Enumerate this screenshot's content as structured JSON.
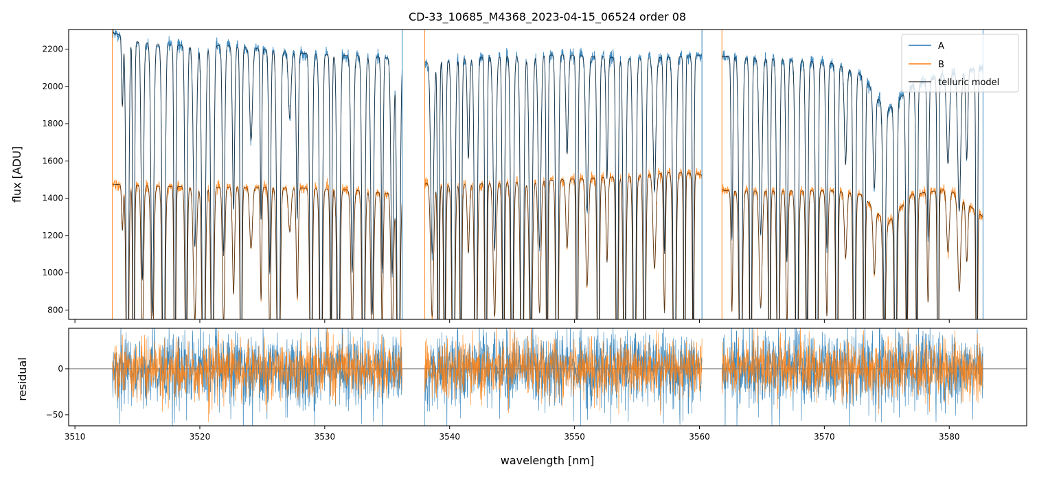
{
  "chart_data": {
    "type": "line",
    "title": "CD-33_10685_M4368_2023-04-15_06524  order 08",
    "xlabel": "wavelength [nm]",
    "colors": {
      "A": "#1f77b4",
      "B": "#ff7f0e",
      "model": "#000000"
    },
    "top_panel": {
      "ylabel": "flux [ADU]",
      "xlim": [
        3509.5,
        3586.2
      ],
      "ylim": [
        750,
        2305
      ],
      "yticks": [
        800,
        1000,
        1200,
        1400,
        1600,
        1800,
        2000,
        2200
      ],
      "legend": [
        "A",
        "B",
        "telluric model"
      ],
      "legend_location": "top-right",
      "segments": [
        [
          3513.0,
          3536.2
        ],
        [
          3538.0,
          3560.2
        ],
        [
          3561.8,
          3582.7
        ]
      ],
      "series": [
        {
          "name": "A",
          "x": [
            3513.0,
            3515.0,
            3517.0,
            3520.0,
            3522.0,
            3525.0,
            3528.0,
            3530.0,
            3533.0,
            3536.0,
            3538.2,
            3540.0,
            3543.0,
            3546.0,
            3549.0,
            3552.0,
            3555.0,
            3558.0,
            3560.0,
            3562.0,
            3565.0,
            3568.0,
            3571.0,
            3573.0,
            3575.0,
            3577.0,
            3580.0,
            3582.7
          ],
          "continuum": [
            2290,
            2240,
            2225,
            2215,
            2220,
            2200,
            2180,
            2170,
            2165,
            2150,
            2130,
            2140,
            2160,
            2165,
            2170,
            2160,
            2150,
            2160,
            2165,
            2160,
            2150,
            2140,
            2120,
            2060,
            1870,
            2000,
            2070,
            2100
          ]
        },
        {
          "name": "B",
          "x": [
            3513.0,
            3515.0,
            3517.0,
            3520.0,
            3522.0,
            3525.0,
            3528.0,
            3530.0,
            3533.0,
            3536.0,
            3538.2,
            3540.0,
            3543.0,
            3546.0,
            3549.0,
            3552.0,
            3555.0,
            3558.0,
            3560.0,
            3562.0,
            3565.0,
            3568.0,
            3571.0,
            3573.0,
            3575.0,
            3577.0,
            3580.0,
            3582.7
          ],
          "continuum": [
            1475,
            1470,
            1465,
            1460,
            1460,
            1460,
            1455,
            1450,
            1440,
            1420,
            1480,
            1470,
            1480,
            1490,
            1500,
            1510,
            1520,
            1540,
            1530,
            1440,
            1440,
            1440,
            1440,
            1420,
            1260,
            1420,
            1450,
            1300
          ]
        },
        {
          "name": "telluric model",
          "note": "overlaid on A and B"
        }
      ],
      "absorption_lines_nm": [
        3513.8,
        3514.2,
        3514.7,
        3515.4,
        3516.2,
        3517.1,
        3518.0,
        3518.9,
        3519.6,
        3520.3,
        3521.0,
        3521.9,
        3522.7,
        3523.3,
        3524.1,
        3524.9,
        3525.6,
        3526.3,
        3527.2,
        3527.8,
        3528.9,
        3529.7,
        3530.5,
        3531.1,
        3532.2,
        3533.1,
        3533.8,
        3534.6,
        3535.4,
        3535.9,
        3538.6,
        3539.1,
        3539.6,
        3540.3,
        3540.9,
        3541.5,
        3542.1,
        3542.9,
        3543.6,
        3544.3,
        3545.0,
        3545.8,
        3546.5,
        3547.2,
        3547.8,
        3548.6,
        3549.4,
        3550.2,
        3551.0,
        3551.9,
        3552.6,
        3553.4,
        3554.0,
        3554.8,
        3555.6,
        3556.4,
        3557.2,
        3558.0,
        3558.8,
        3559.5,
        3562.6,
        3563.3,
        3564.1,
        3564.9,
        3565.6,
        3566.3,
        3567.0,
        3567.8,
        3568.6,
        3569.4,
        3570.2,
        3571.0,
        3571.7,
        3572.4,
        3573.2,
        3574.0,
        3574.8,
        3575.7,
        3576.6,
        3577.4,
        3578.3,
        3579.1,
        3579.9,
        3580.8,
        3581.4,
        3582.2
      ]
    },
    "bottom_panel": {
      "ylabel": "residual",
      "xlim": [
        3509.5,
        3586.2
      ],
      "ylim": [
        -62,
        44
      ],
      "yticks": [
        -50,
        0
      ],
      "xticks": [
        3510,
        3520,
        3530,
        3540,
        3550,
        3560,
        3570,
        3580
      ],
      "zero_line": true,
      "series": [
        {
          "name": "A",
          "typical_scatter": 20
        },
        {
          "name": "B",
          "typical_scatter": 16
        }
      ]
    }
  }
}
